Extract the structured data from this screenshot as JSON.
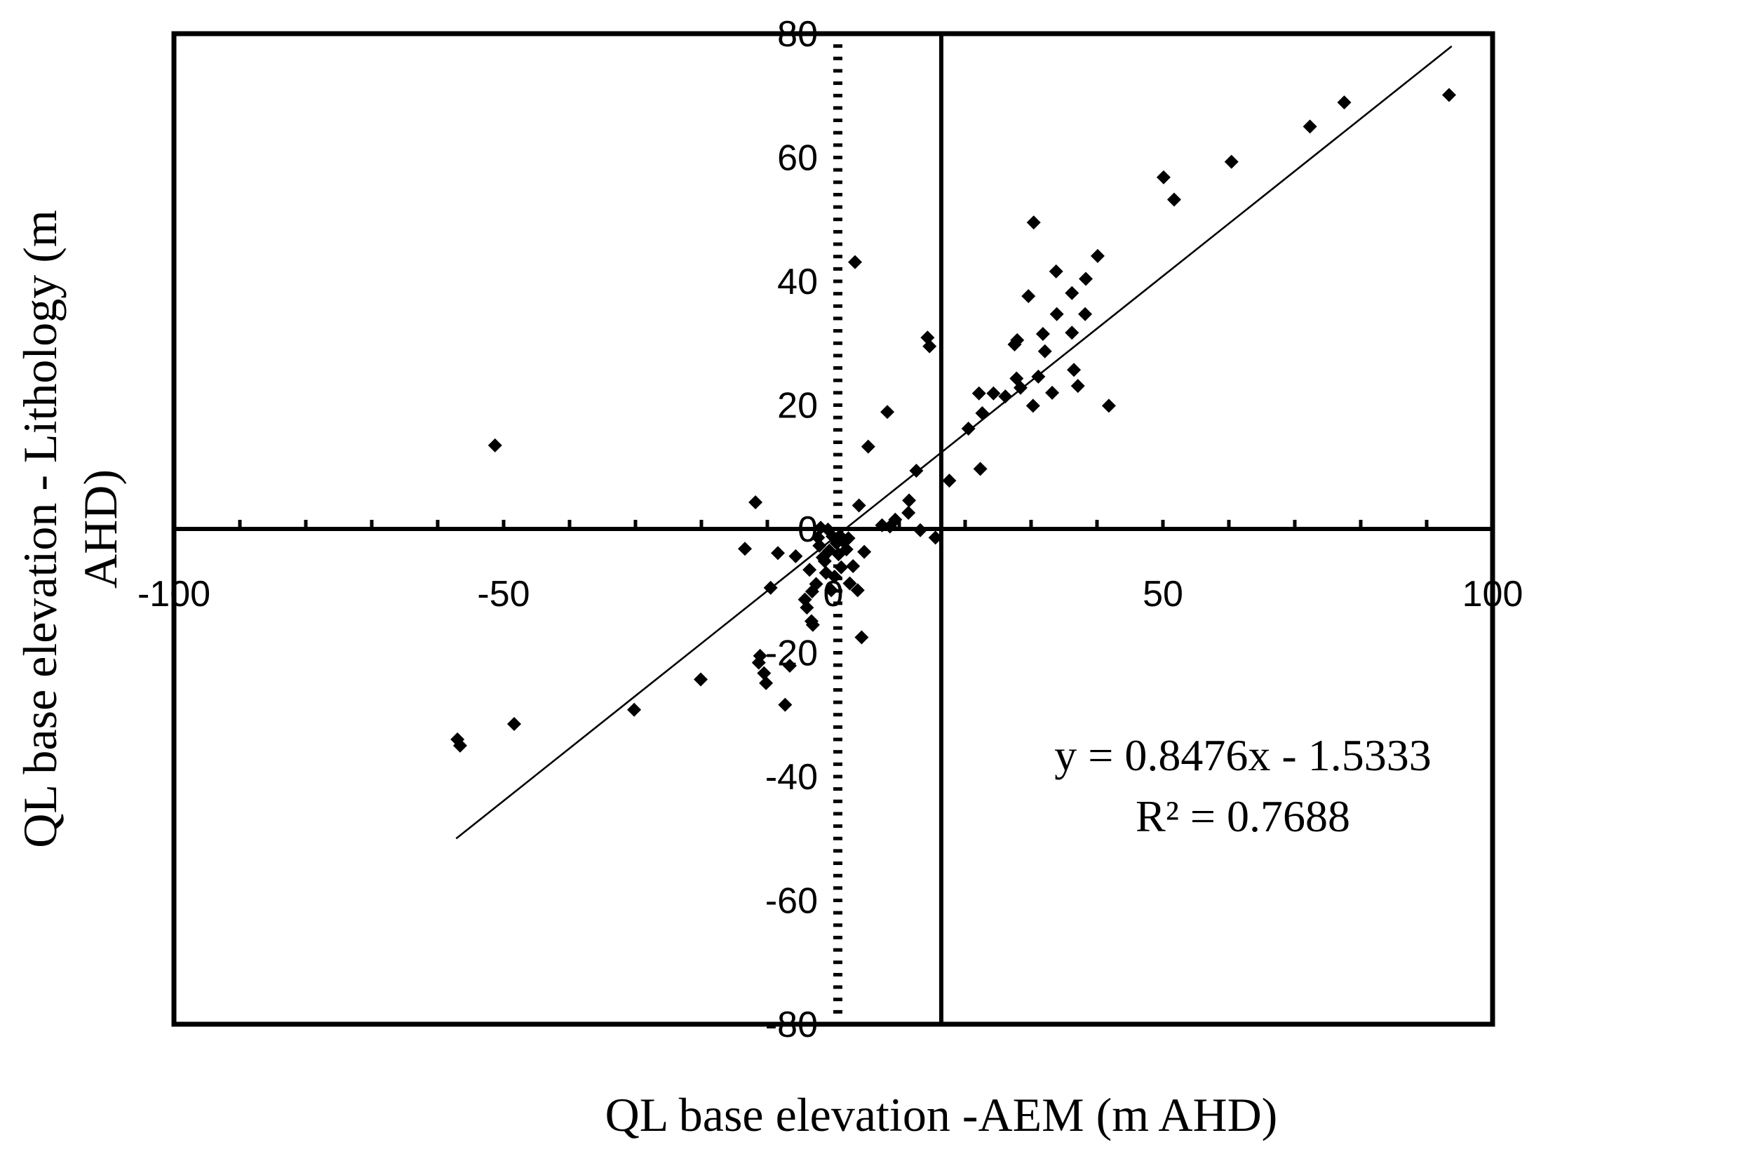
{
  "chart_data": {
    "type": "scatter",
    "title": "",
    "xlabel": "QL base elevation -AEM (m AHD)",
    "ylabel_line1": "QL base elevation - Lithology (m",
    "ylabel_line2": "AHD)",
    "xlim": [
      -100,
      100
    ],
    "ylim": [
      -80,
      80
    ],
    "x_ticks": [
      -100,
      -50,
      0,
      50,
      100
    ],
    "y_ticks": [
      -80,
      -60,
      -40,
      -20,
      0,
      20,
      40,
      60,
      80
    ],
    "x_tick_labels": [
      "-100",
      "-50",
      "0",
      "50",
      "100"
    ],
    "y_tick_labels": [
      "-80",
      "-60",
      "-40",
      "-20",
      "0",
      "20",
      "40",
      "60",
      "80"
    ],
    "trendline": {
      "slope": 0.8476,
      "intercept": -1.5333,
      "x_range": [
        -57.2,
        93.8
      ],
      "equation_label": "y = 0.8476x - 1.5333",
      "r2_label": "R² = 0.7688"
    },
    "series": [
      {
        "name": "QL base elevation",
        "marker": "diamond",
        "color": "#000000",
        "points": [
          [
            -57,
            -34
          ],
          [
            -56.6,
            -35
          ],
          [
            -51.3,
            13.5
          ],
          [
            -48.4,
            -31.5
          ],
          [
            -30.2,
            -29.2
          ],
          [
            -20.1,
            -24.3
          ],
          [
            -13.4,
            -3.2
          ],
          [
            -11.8,
            4.3
          ],
          [
            -11.3,
            -21.6
          ],
          [
            -11.1,
            -20.5
          ],
          [
            -10.5,
            -23.3
          ],
          [
            -10.2,
            -24.9
          ],
          [
            -7.3,
            -28.4
          ],
          [
            -6.6,
            -22.1
          ],
          [
            -5.7,
            -4.4
          ],
          [
            -9.5,
            -9.5
          ],
          [
            -8.4,
            -3.9
          ],
          [
            -4.3,
            -11.4
          ],
          [
            -4,
            -12.7
          ],
          [
            -3.3,
            -14.9
          ],
          [
            -3.1,
            -15.5
          ],
          [
            -3.6,
            -6.6
          ],
          [
            -3.2,
            -10.1
          ],
          [
            -2.6,
            -8.9
          ],
          [
            -2.3,
            -1.4
          ],
          [
            -2.1,
            -2.7
          ],
          [
            -1.9,
            0.2
          ],
          [
            -1.6,
            -4.6
          ],
          [
            -1.3,
            -5.2
          ],
          [
            -1.1,
            -7.1
          ],
          [
            -0.8,
            -0.1
          ],
          [
            -0.6,
            -3.5
          ],
          [
            -0.3,
            -9.9
          ],
          [
            -0.1,
            -1.2
          ],
          [
            0.2,
            -7.7
          ],
          [
            0.5,
            -2.3
          ],
          [
            0.8,
            -4.1
          ],
          [
            1,
            -1.1
          ],
          [
            1.2,
            -6.2
          ],
          [
            1.6,
            -2.1
          ],
          [
            2,
            -3.3
          ],
          [
            2.3,
            -1.5
          ],
          [
            2.5,
            -8.8
          ],
          [
            3,
            -6
          ],
          [
            3.3,
            43.1
          ],
          [
            3.7,
            -9.9
          ],
          [
            3.9,
            3.8
          ],
          [
            4.7,
            -3.7
          ],
          [
            4.3,
            -17.5
          ],
          [
            5.3,
            13.3
          ],
          [
            7.4,
            0.6
          ],
          [
            8.2,
            18.9
          ],
          [
            8.6,
            0.4
          ],
          [
            9.4,
            1.5
          ],
          [
            11.5,
            4.6
          ],
          [
            11.4,
            2.6
          ],
          [
            12.6,
            9.4
          ],
          [
            13.2,
            -0.2
          ],
          [
            14.3,
            30.9
          ],
          [
            14.6,
            29.5
          ],
          [
            15.5,
            -1.4
          ],
          [
            17.6,
            7.8
          ],
          [
            20.5,
            16.2
          ],
          [
            22.1,
            21.9
          ],
          [
            22.3,
            9.7
          ],
          [
            22.6,
            18.7
          ],
          [
            24.3,
            21.9
          ],
          [
            26.1,
            21.4
          ],
          [
            27.5,
            29.8
          ],
          [
            27.9,
            30.5
          ],
          [
            27.8,
            24.3
          ],
          [
            28.4,
            22.8
          ],
          [
            29.6,
            37.6
          ],
          [
            30.3,
            19.9
          ],
          [
            30.4,
            49.5
          ],
          [
            31.1,
            24.6
          ],
          [
            31.8,
            31.5
          ],
          [
            32.1,
            28.7
          ],
          [
            33.2,
            22
          ],
          [
            33.8,
            41.6
          ],
          [
            33.9,
            34.7
          ],
          [
            36.2,
            38.1
          ],
          [
            36.2,
            31.7
          ],
          [
            36.5,
            25.7
          ],
          [
            37.1,
            23.1
          ],
          [
            38.2,
            34.7
          ],
          [
            38.3,
            40.4
          ],
          [
            40.1,
            44.1
          ],
          [
            41.8,
            19.9
          ],
          [
            50.1,
            56.8
          ],
          [
            51.7,
            53.2
          ],
          [
            60.4,
            59.3
          ],
          [
            72.3,
            65
          ],
          [
            77.5,
            68.9
          ],
          [
            93.4,
            70.1
          ]
        ]
      }
    ]
  }
}
